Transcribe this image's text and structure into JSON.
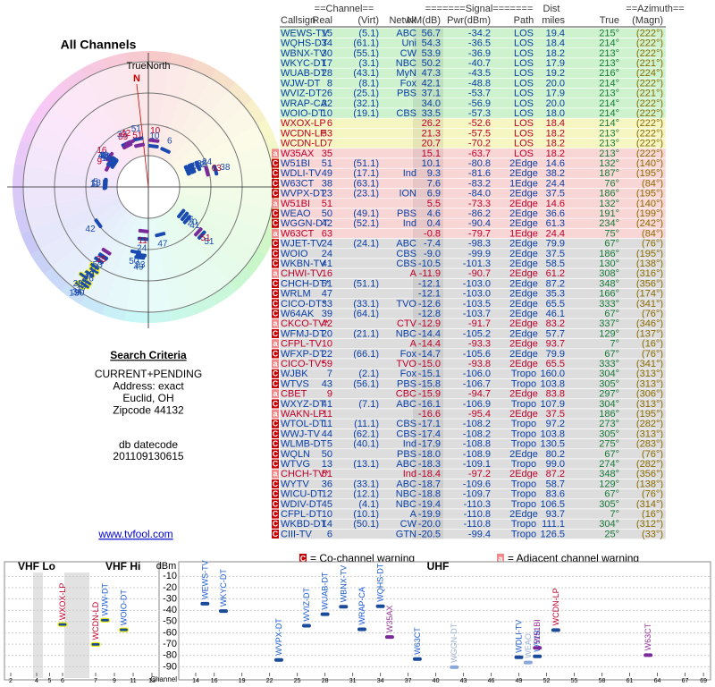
{
  "header": {
    "title": "All Channels"
  },
  "polar": {
    "true_north": "TrueNorth",
    "north": "N"
  },
  "criteria": {
    "title": "Search Criteria",
    "lines": [
      "CURRENT+PENDING",
      "Address: exact",
      "Euclid, OH",
      "Zipcode 44132"
    ],
    "datecode_label": "db datecode",
    "datecode": "201109130615",
    "link": "www.tvfool.com"
  },
  "table": {
    "group_headers": [
      "==Channel==",
      "=======Signal=======",
      "Dist",
      "==Azimuth=="
    ],
    "columns": [
      "Callsign",
      "Real",
      "(Virt)",
      "Netwk",
      "NM(dB)",
      "Pwr(dBm)",
      "Path",
      "miles",
      "True",
      "(Magn)"
    ],
    "rows": [
      [
        null,
        "WEWS-TV",
        "15",
        "(5.1)",
        "ABC",
        "56.7",
        "-34.2",
        "LOS",
        "19.4",
        "215°",
        "(222°)"
      ],
      [
        null,
        "WQHS-DT",
        "34",
        "(61.1)",
        "Uni",
        "54.3",
        "-36.5",
        "LOS",
        "18.4",
        "214°",
        "(222°)"
      ],
      [
        null,
        "WBNX-TV",
        "30",
        "(55.1)",
        "CW",
        "53.9",
        "-36.9",
        "LOS",
        "18.2",
        "213°",
        "(222°)"
      ],
      [
        null,
        "WKYC-DT",
        "17",
        "(3.1)",
        "NBC",
        "50.2",
        "-40.7",
        "LOS",
        "17.9",
        "213°",
        "(221°)"
      ],
      [
        null,
        "WUAB-DT",
        "28",
        "(43.1)",
        "MyN",
        "47.3",
        "-43.5",
        "LOS",
        "19.2",
        "216°",
        "(224°)"
      ],
      [
        null,
        "WJW-DT",
        "8",
        "(8.1)",
        "Fox",
        "42.1",
        "-48.8",
        "LOS",
        "20.0",
        "214°",
        "(222°)"
      ],
      [
        null,
        "WVIZ-DT",
        "26",
        "(25.1)",
        "PBS",
        "37.1",
        "-53.7",
        "LOS",
        "17.9",
        "213°",
        "(221°)"
      ],
      [
        null,
        "WRAP-CA",
        "32",
        "(32.1)",
        null,
        "34.0",
        "-56.9",
        "LOS",
        "20.0",
        "214°",
        "(222°)"
      ],
      [
        null,
        "WOIO-DT",
        "10",
        "(19.1)",
        "CBS",
        "33.5",
        "-57.3",
        "LOS",
        "18.0",
        "214°",
        "(222°)"
      ],
      [
        null,
        "WXOX-LP",
        "6",
        null,
        null,
        "26.2",
        "-52.6",
        "LOS",
        "18.4",
        "214°",
        "(222°)"
      ],
      [
        null,
        "WCDN-LP",
        "53",
        null,
        null,
        "21.3",
        "-57.5",
        "LOS",
        "18.2",
        "213°",
        "(222°)"
      ],
      [
        null,
        "WCDN-LD",
        "7",
        null,
        null,
        "20.7",
        "-70.2",
        "LOS",
        "18.2",
        "213°",
        "(222°)"
      ],
      [
        "a",
        "W35AX",
        "35",
        null,
        null,
        "15.1",
        "-63.7",
        "LOS",
        "18.2",
        "213°",
        "(222°)"
      ],
      [
        "C",
        "W51BI",
        "51",
        "(51.1)",
        null,
        "10.1",
        "-80.8",
        "2Edge",
        "14.6",
        "132°",
        "(140°)"
      ],
      [
        "C",
        "WDLI-TV",
        "49",
        "(17.1)",
        "Ind",
        "9.3",
        "-81.6",
        "2Edge",
        "38.2",
        "187°",
        "(195°)"
      ],
      [
        "C",
        "W63CT",
        "38",
        "(63.1)",
        null,
        "7.6",
        "-83.2",
        "1Edge",
        "24.4",
        "76°",
        "(84°)"
      ],
      [
        "C",
        "WVPX-DT",
        "23",
        "(23.1)",
        "ION",
        "6.9",
        "-84.0",
        "2Edge",
        "37.5",
        "186°",
        "(195°)"
      ],
      [
        "a",
        "W51BI",
        "51",
        null,
        null,
        "5.5",
        "-73.3",
        "2Edge",
        "14.6",
        "132°",
        "(140°)"
      ],
      [
        "C",
        "WEAO",
        "50",
        "(49.1)",
        "PBS",
        "4.6",
        "-86.2",
        "2Edge",
        "36.6",
        "191°",
        "(199°)"
      ],
      [
        "C",
        "WGGN-DT",
        "42",
        "(52.1)",
        "Ind",
        "0.4",
        "-90.4",
        "2Edge",
        "61.3",
        "234°",
        "(242°)"
      ],
      [
        "a",
        "W63CT",
        "63",
        null,
        null,
        "-0.8",
        "-79.7",
        "1Edge",
        "24.4",
        "75°",
        "(84°)"
      ],
      [
        "C",
        "WJET-TV",
        "24",
        "(24.1)",
        "ABC",
        "-7.4",
        "-98.3",
        "2Edge",
        "79.9",
        "67°",
        "(76°)"
      ],
      [
        "C",
        "WOIO",
        "24",
        null,
        "CBS",
        "-9.0",
        "-99.9",
        "2Edge",
        "37.5",
        "186°",
        "(195°)"
      ],
      [
        "C",
        "WKBN-TV",
        "41",
        null,
        "CBS",
        "-10.5",
        "-101.3",
        "2Edge",
        "58.5",
        "130°",
        "(138°)"
      ],
      [
        "a",
        "CHWI-TV",
        "16",
        null,
        "A",
        "-11.9",
        "-90.7",
        "2Edge",
        "61.2",
        "308°",
        "(316°)"
      ],
      [
        "C",
        "CHCH-DT*",
        "51",
        "(51.1)",
        null,
        "-12.1",
        "-103.0",
        "2Edge",
        "87.2",
        "348°",
        "(356°)"
      ],
      [
        "C",
        "WRLM",
        "47",
        null,
        null,
        "-12.1",
        "-103.0",
        "2Edge",
        "35.3",
        "166°",
        "(174°)"
      ],
      [
        "C",
        "CICO-DT*",
        "33",
        "(33.1)",
        "TVO",
        "-12.6",
        "-103.5",
        "2Edge",
        "65.5",
        "333°",
        "(341°)"
      ],
      [
        "C",
        "W64AK",
        "39",
        "(64.1)",
        null,
        "-12.8",
        "-103.7",
        "2Edge",
        "46.1",
        "67°",
        "(76°)"
      ],
      [
        "a",
        "CKCO-TV*",
        "42",
        null,
        "CTV",
        "-12.9",
        "-91.7",
        "2Edge",
        "83.2",
        "337°",
        "(346°)"
      ],
      [
        "C",
        "WFMJ-DT",
        "20",
        "(21.1)",
        "NBC",
        "-14.4",
        "-105.2",
        "2Edge",
        "57.7",
        "129°",
        "(137°)"
      ],
      [
        "a",
        "CFPL-TV",
        "10",
        null,
        "A",
        "-14.4",
        "-93.3",
        "2Edge",
        "93.7",
        "7°",
        "(16°)"
      ],
      [
        "C",
        "WFXP-DT",
        "22",
        "(66.1)",
        "Fox",
        "-14.7",
        "-105.6",
        "2Edge",
        "79.9",
        "67°",
        "(76°)"
      ],
      [
        "a",
        "CICO-TV*",
        "59",
        null,
        "TVO",
        "-15.0",
        "-93.8",
        "2Edge",
        "65.5",
        "333°",
        "(341°)"
      ],
      [
        "C",
        "WJBK",
        "7",
        "(2.1)",
        "Fox",
        "-15.1",
        "-106.0",
        "Tropo",
        "160.0",
        "304°",
        "(313°)"
      ],
      [
        "C",
        "WTVS",
        "43",
        "(56.1)",
        "PBS",
        "-15.8",
        "-106.7",
        "Tropo",
        "103.8",
        "305°",
        "(313°)"
      ],
      [
        "a",
        "CBET",
        "9",
        null,
        "CBC",
        "-15.9",
        "-94.7",
        "2Edge",
        "83.8",
        "297°",
        "(306°)"
      ],
      [
        "C",
        "WXYZ-DT",
        "41",
        "(7.1)",
        "ABC",
        "-16.1",
        "-106.9",
        "Tropo",
        "107.9",
        "304°",
        "(313°)"
      ],
      [
        "a",
        "WAKN-LP",
        "11",
        null,
        null,
        "-16.6",
        "-95.4",
        "2Edge",
        "37.5",
        "186°",
        "(195°)"
      ],
      [
        "C",
        "WTOL-DT",
        "11",
        "(11.1)",
        "CBS",
        "-17.1",
        "-108.2",
        "Tropo",
        "97.2",
        "273°",
        "(282°)"
      ],
      [
        "C",
        "WWJ-TV",
        "44",
        "(62.1)",
        "CBS",
        "-17.4",
        "-108.2",
        "Tropo",
        "103.8",
        "305°",
        "(313°)"
      ],
      [
        "C",
        "WLMB-DT",
        "5",
        "(40.1)",
        "Ind",
        "-17.9",
        "-108.8",
        "Tropo",
        "130.5",
        "275°",
        "(283°)"
      ],
      [
        "C",
        "WQLN",
        "50",
        null,
        "PBS",
        "-18.0",
        "-108.9",
        "2Edge",
        "80.2",
        "67°",
        "(76°)"
      ],
      [
        "C",
        "WTVG",
        "13",
        "(13.1)",
        "ABC",
        "-18.3",
        "-109.1",
        "Tropo",
        "99.0",
        "274°",
        "(282°)"
      ],
      [
        "a",
        "CHCH-TV*",
        "51",
        null,
        "Ind",
        "-18.4",
        "-97.2",
        "2Edge",
        "87.2",
        "348°",
        "(356°)"
      ],
      [
        "C",
        "WYTV",
        "36",
        "(33.1)",
        "ABC",
        "-18.7",
        "-109.6",
        "Tropo",
        "58.7",
        "129°",
        "(138°)"
      ],
      [
        "C",
        "WICU-DT",
        "12",
        "(12.1)",
        "NBC",
        "-18.8",
        "-109.7",
        "Tropo",
        "83.6",
        "67°",
        "(76°)"
      ],
      [
        "C",
        "WDIV-DT",
        "45",
        "(4.1)",
        "NBC",
        "-19.4",
        "-110.3",
        "Tropo",
        "106.5",
        "305°",
        "(314°)"
      ],
      [
        "C",
        "CFPL-DT",
        "10",
        "(10.1)",
        "A",
        "-19.9",
        "-110.8",
        "2Edge",
        "93.7",
        "7°",
        "(16°)"
      ],
      [
        "C",
        "WKBD-DT",
        "14",
        "(50.1)",
        "CW",
        "-20.0",
        "-110.8",
        "Tropo",
        "111.1",
        "304°",
        "(312°)"
      ],
      [
        "C",
        "CIII-TV",
        "6",
        null,
        "GTN",
        "-20.5",
        "-99.4",
        "Tropo",
        "126.5",
        "25°",
        "(33°)"
      ]
    ]
  },
  "legend": {
    "items": [
      {
        "flag": "C",
        "text": "= Co-channel warning"
      },
      {
        "flag": "a",
        "text": "= Adjacent channel warning"
      }
    ]
  },
  "spectrum": {
    "vhf_lo": "VHF Lo",
    "vhf_hi": "VHF Hi",
    "uhf": "UHF",
    "y_label": "dBm",
    "x_label": "Channel",
    "ylim": [
      -100,
      -5
    ],
    "yticks": [
      -10,
      -20,
      -30,
      -40,
      -50,
      -60,
      -70,
      -80,
      -90
    ],
    "vhf_xticks": [
      2,
      4,
      5,
      6,
      7,
      9,
      11,
      13
    ],
    "uhf_xticks": [
      14,
      16,
      19,
      22,
      25,
      28,
      31,
      34,
      37,
      40,
      43,
      46,
      49,
      52,
      55,
      58,
      61,
      64,
      67,
      69
    ]
  }
}
